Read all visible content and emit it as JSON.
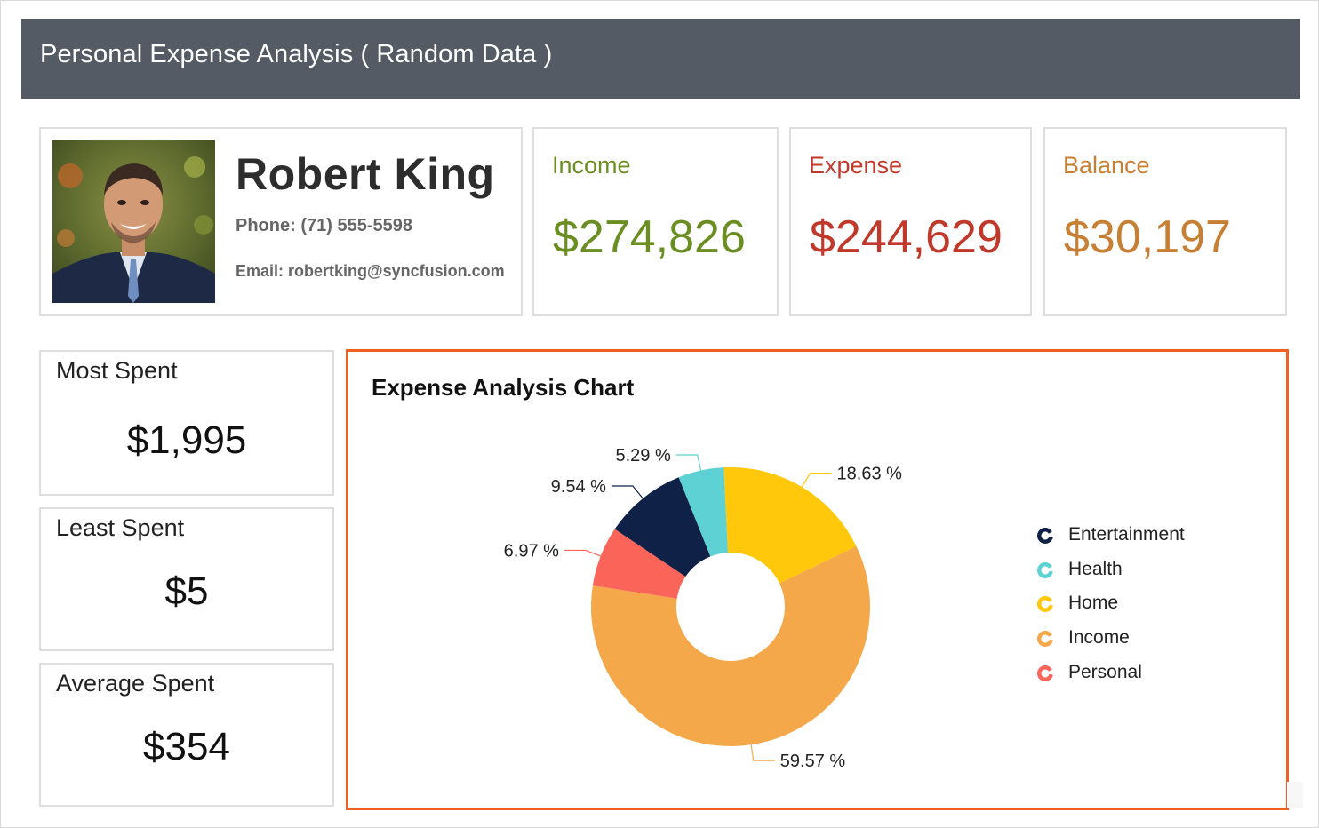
{
  "header": {
    "title": "Personal Expense Analysis ( Random Data )"
  },
  "profile": {
    "name": "Robert King",
    "phone": "Phone: (71) 555-5598",
    "email": "Email: robertking@syncfusion.com"
  },
  "stats": {
    "income": {
      "label": "Income",
      "value": "$274,826",
      "color": "#6b8e23"
    },
    "expense": {
      "label": "Expense",
      "value": "$244,629",
      "color": "#c0392b"
    },
    "balance": {
      "label": "Balance",
      "value": "$30,197",
      "color": "#c77f33"
    }
  },
  "summary": {
    "most": {
      "label": "Most Spent",
      "value": "$1,995"
    },
    "least": {
      "label": "Least Spent",
      "value": "$5"
    },
    "average": {
      "label": "Average Spent",
      "value": "$354"
    }
  },
  "chart_data": {
    "type": "pie",
    "title": "Expense Analysis Chart",
    "donut": true,
    "legend_position": "right",
    "slices": [
      {
        "label": "59.57 %",
        "value": 59.57,
        "color": "#f4a84a"
      },
      {
        "label": "6.97 %",
        "value": 6.97,
        "color": "#fb6559"
      },
      {
        "label": "9.54 %",
        "value": 9.54,
        "color": "#0f2146"
      },
      {
        "label": "5.29 %",
        "value": 5.29,
        "color": "#5dd1d4"
      },
      {
        "label": "18.63 %",
        "value": 18.63,
        "color": "#ffc80a"
      }
    ],
    "legend": [
      {
        "name": "Entertainment",
        "color": "#0f2146"
      },
      {
        "name": "Health",
        "color": "#5dd1d4"
      },
      {
        "name": "Home",
        "color": "#ffc80a"
      },
      {
        "name": "Income",
        "color": "#f4a84a"
      },
      {
        "name": "Personal",
        "color": "#fb6559"
      }
    ]
  }
}
